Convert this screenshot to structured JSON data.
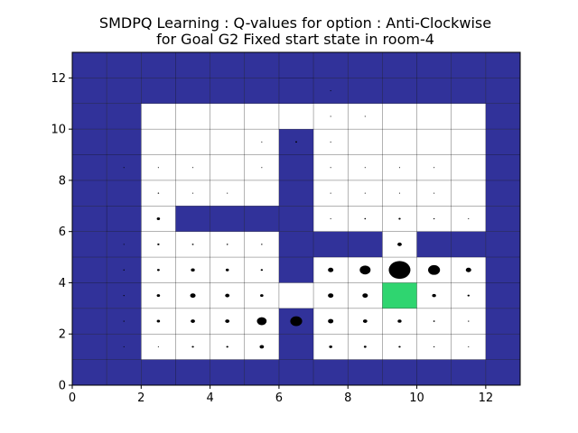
{
  "chart_data": {
    "type": "heatmap",
    "title_line1": "SMDPQ Learning : Q-values for option : Anti-Clockwise",
    "title_line2": "for Goal G2 Fixed start state in room-4",
    "xlim": [
      0,
      13
    ],
    "ylim": [
      0,
      13
    ],
    "xticks": [
      "0",
      "2",
      "4",
      "6",
      "8",
      "10",
      "12"
    ],
    "yticks": [
      "0",
      "2",
      "4",
      "6",
      "8",
      "10",
      "12"
    ],
    "grid": true,
    "colors": {
      "wall": "#31329a",
      "goal": "#2fd570",
      "free": "#ffffff",
      "marker": "#000000"
    },
    "walls": [
      [
        1,
        0
      ],
      [
        1,
        1
      ],
      [
        1,
        2
      ],
      [
        1,
        3
      ],
      [
        1,
        4
      ],
      [
        1,
        5
      ],
      [
        1,
        6
      ],
      [
        1,
        7
      ],
      [
        1,
        8
      ],
      [
        1,
        9
      ],
      [
        1,
        10
      ],
      [
        1,
        11
      ],
      [
        2,
        0
      ],
      [
        2,
        11
      ],
      [
        3,
        0
      ],
      [
        3,
        11
      ],
      [
        4,
        0
      ],
      [
        4,
        11
      ],
      [
        5,
        0
      ],
      [
        5,
        11
      ],
      [
        6,
        0
      ],
      [
        6,
        11
      ],
      [
        7,
        0
      ],
      [
        7,
        11
      ],
      [
        8,
        0
      ],
      [
        8,
        11
      ],
      [
        9,
        0
      ],
      [
        9,
        11
      ],
      [
        10,
        0
      ],
      [
        10,
        11
      ],
      [
        11,
        0
      ],
      [
        11,
        11
      ],
      [
        0,
        0
      ],
      [
        0,
        1
      ],
      [
        0,
        2
      ],
      [
        0,
        3
      ],
      [
        0,
        4
      ],
      [
        0,
        5
      ],
      [
        0,
        6
      ],
      [
        0,
        7
      ],
      [
        0,
        8
      ],
      [
        0,
        9
      ],
      [
        0,
        10
      ],
      [
        0,
        11
      ],
      [
        0,
        12
      ],
      [
        12,
        0
      ],
      [
        12,
        1
      ],
      [
        12,
        2
      ],
      [
        12,
        3
      ],
      [
        12,
        4
      ],
      [
        12,
        5
      ],
      [
        12,
        6
      ],
      [
        12,
        7
      ],
      [
        12,
        8
      ],
      [
        12,
        9
      ],
      [
        12,
        10
      ],
      [
        12,
        11
      ],
      [
        12,
        12
      ],
      [
        1,
        12
      ],
      [
        2,
        12
      ],
      [
        3,
        12
      ],
      [
        4,
        12
      ],
      [
        5,
        12
      ],
      [
        6,
        12
      ],
      [
        7,
        12
      ],
      [
        8,
        12
      ],
      [
        9,
        12
      ],
      [
        10,
        12
      ],
      [
        11,
        12
      ],
      [
        6,
        1
      ],
      [
        6,
        2
      ],
      [
        6,
        4
      ],
      [
        6,
        5
      ],
      [
        6,
        6
      ],
      [
        6,
        7
      ],
      [
        6,
        8
      ],
      [
        6,
        9
      ],
      [
        6,
        11
      ],
      [
        6,
        12
      ],
      [
        1,
        6
      ],
      [
        3,
        6
      ],
      [
        4,
        6
      ],
      [
        5,
        6
      ],
      [
        7,
        5
      ],
      [
        8,
        5
      ],
      [
        10,
        5
      ],
      [
        11,
        5
      ]
    ],
    "goal_cells": [
      [
        9,
        3
      ]
    ],
    "q_markers": [
      {
        "x": 1,
        "y": 1,
        "q": 0.05
      },
      {
        "x": 2,
        "y": 1,
        "q": 0.05
      },
      {
        "x": 3,
        "y": 1,
        "q": 0.1
      },
      {
        "x": 4,
        "y": 1,
        "q": 0.1
      },
      {
        "x": 5,
        "y": 1,
        "q": 0.2
      },
      {
        "x": 1,
        "y": 2,
        "q": 0.06
      },
      {
        "x": 2,
        "y": 2,
        "q": 0.15
      },
      {
        "x": 3,
        "y": 2,
        "q": 0.2
      },
      {
        "x": 4,
        "y": 2,
        "q": 0.2
      },
      {
        "x": 5,
        "y": 2,
        "q": 0.45
      },
      {
        "x": 6,
        "y": 2,
        "q": 0.55
      },
      {
        "x": 1,
        "y": 3,
        "q": 0.06
      },
      {
        "x": 2,
        "y": 3,
        "q": 0.15
      },
      {
        "x": 3,
        "y": 3,
        "q": 0.25
      },
      {
        "x": 4,
        "y": 3,
        "q": 0.2
      },
      {
        "x": 5,
        "y": 3,
        "q": 0.15
      },
      {
        "x": 1,
        "y": 4,
        "q": 0.06
      },
      {
        "x": 2,
        "y": 4,
        "q": 0.12
      },
      {
        "x": 3,
        "y": 4,
        "q": 0.18
      },
      {
        "x": 4,
        "y": 4,
        "q": 0.15
      },
      {
        "x": 5,
        "y": 4,
        "q": 0.1
      },
      {
        "x": 1,
        "y": 5,
        "q": 0.05
      },
      {
        "x": 2,
        "y": 5,
        "q": 0.1
      },
      {
        "x": 3,
        "y": 5,
        "q": 0.08
      },
      {
        "x": 4,
        "y": 5,
        "q": 0.07
      },
      {
        "x": 5,
        "y": 5,
        "q": 0.06
      },
      {
        "x": 2,
        "y": 6,
        "q": 0.15
      },
      {
        "x": 2,
        "y": 7,
        "q": 0.06
      },
      {
        "x": 3,
        "y": 7,
        "q": 0.03
      },
      {
        "x": 4,
        "y": 7,
        "q": 0.03
      },
      {
        "x": 1,
        "y": 8,
        "q": 0.02
      },
      {
        "x": 2,
        "y": 8,
        "q": 0.03
      },
      {
        "x": 3,
        "y": 8,
        "q": 0.02
      },
      {
        "x": 5,
        "y": 8,
        "q": 0.02
      },
      {
        "x": 5,
        "y": 9,
        "q": 0.04
      },
      {
        "x": 6,
        "y": 9,
        "q": 0.08
      },
      {
        "x": 7,
        "y": 9,
        "q": 0.03
      },
      {
        "x": 7,
        "y": 10,
        "q": 0.02
      },
      {
        "x": 8,
        "y": 10,
        "q": 0.02
      },
      {
        "x": 7,
        "y": 11,
        "q": 0.02
      },
      {
        "x": 7,
        "y": 8,
        "q": 0.02
      },
      {
        "x": 8,
        "y": 8,
        "q": 0.03
      },
      {
        "x": 9,
        "y": 8,
        "q": 0.03
      },
      {
        "x": 10,
        "y": 8,
        "q": 0.03
      },
      {
        "x": 7,
        "y": 7,
        "q": 0.03
      },
      {
        "x": 8,
        "y": 7,
        "q": 0.03
      },
      {
        "x": 9,
        "y": 7,
        "q": 0.04
      },
      {
        "x": 10,
        "y": 7,
        "q": 0.03
      },
      {
        "x": 7,
        "y": 6,
        "q": 0.04
      },
      {
        "x": 8,
        "y": 6,
        "q": 0.07
      },
      {
        "x": 9,
        "y": 6,
        "q": 0.1
      },
      {
        "x": 10,
        "y": 6,
        "q": 0.06
      },
      {
        "x": 11,
        "y": 6,
        "q": 0.02
      },
      {
        "x": 9,
        "y": 5,
        "q": 0.2
      },
      {
        "x": 7,
        "y": 4,
        "q": 0.25
      },
      {
        "x": 8,
        "y": 4,
        "q": 0.5
      },
      {
        "x": 9,
        "y": 4,
        "q": 1.0
      },
      {
        "x": 10,
        "y": 4,
        "q": 0.55
      },
      {
        "x": 11,
        "y": 4,
        "q": 0.25
      },
      {
        "x": 7,
        "y": 3,
        "q": 0.25
      },
      {
        "x": 8,
        "y": 3,
        "q": 0.25
      },
      {
        "x": 10,
        "y": 3,
        "q": 0.18
      },
      {
        "x": 11,
        "y": 3,
        "q": 0.1
      },
      {
        "x": 7,
        "y": 2,
        "q": 0.25
      },
      {
        "x": 8,
        "y": 2,
        "q": 0.2
      },
      {
        "x": 9,
        "y": 2,
        "q": 0.18
      },
      {
        "x": 10,
        "y": 2,
        "q": 0.08
      },
      {
        "x": 11,
        "y": 2,
        "q": 0.06
      },
      {
        "x": 7,
        "y": 1,
        "q": 0.15
      },
      {
        "x": 8,
        "y": 1,
        "q": 0.12
      },
      {
        "x": 9,
        "y": 1,
        "q": 0.1
      },
      {
        "x": 10,
        "y": 1,
        "q": 0.06
      },
      {
        "x": 11,
        "y": 1,
        "q": 0.02
      }
    ]
  }
}
